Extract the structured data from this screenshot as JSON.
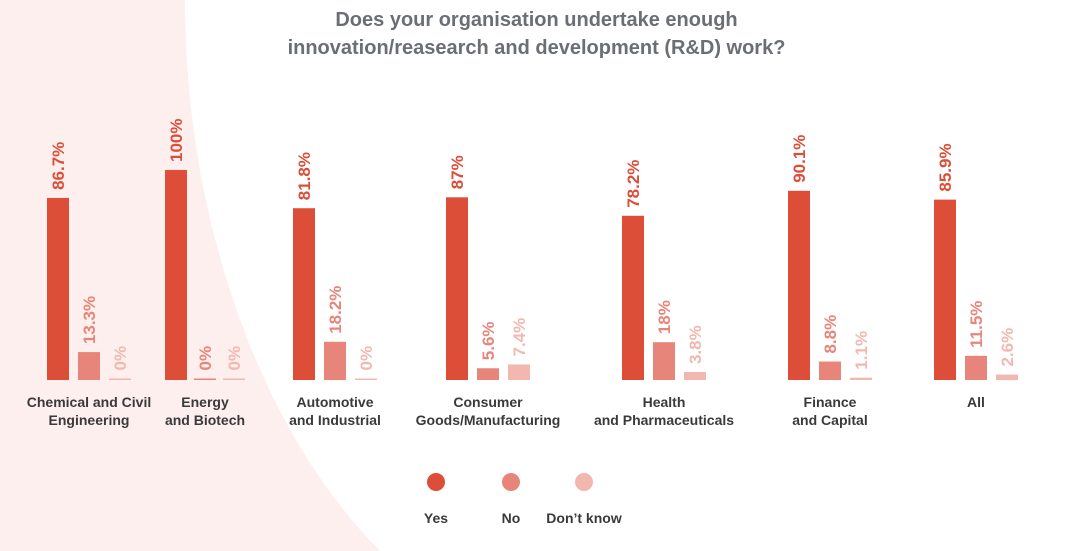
{
  "colors": {
    "yes": "#dd4e39",
    "no": "#e8857a",
    "dont_know": "#f2b8b0",
    "title": "#6b6f74",
    "decor": "#fcefed"
  },
  "chart_data": {
    "type": "bar",
    "title": "Does your organisation undertake enough innovation/reasearch and development (R&D) work?",
    "title_lines": [
      "Does your organisation undertake enough",
      "innovation/reasearch and development (R&D) work?"
    ],
    "categories": [
      [
        "Chemical and Civil",
        "Engineering"
      ],
      [
        "Energy",
        "and Biotech"
      ],
      [
        "Automotive",
        "and Industrial"
      ],
      [
        "Consumer",
        "Goods/Manufacturing"
      ],
      [
        "Health",
        "and Pharmaceuticals"
      ],
      [
        "Finance",
        "and Capital"
      ],
      [
        "All"
      ]
    ],
    "series": [
      {
        "name": "Yes",
        "values": [
          86.7,
          100,
          81.8,
          87,
          78.2,
          90.1,
          85.9
        ],
        "labels": [
          "86.7%",
          "100%",
          "81.8%",
          "87%",
          "78.2%",
          "90.1%",
          "85.9%"
        ]
      },
      {
        "name": "No",
        "values": [
          13.3,
          0,
          18.2,
          5.6,
          18,
          8.8,
          11.5
        ],
        "labels": [
          "13.3%",
          "0%",
          "18.2%",
          "5.6%",
          "18%",
          "8.8%",
          "11.5%"
        ]
      },
      {
        "name": "Don't know",
        "values": [
          0,
          0,
          0,
          7.4,
          3.8,
          1.1,
          2.6
        ],
        "labels": [
          "0%",
          "0%",
          "0%",
          "7.4%",
          "3.8%",
          "1.1%",
          "2.6%"
        ]
      }
    ],
    "ylim": [
      0,
      100
    ],
    "legend": [
      "Yes",
      "No",
      "Don’t know"
    ],
    "legend_position": "bottom-center"
  }
}
